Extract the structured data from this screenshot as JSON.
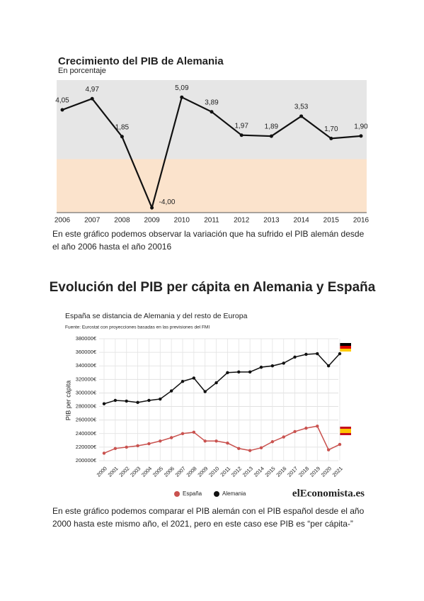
{
  "chart_data": [
    {
      "type": "line",
      "title": "Crecimiento del PIB de Alemania",
      "subtitle": "En porcentaje",
      "categories": [
        "2006",
        "2007",
        "2008",
        "2009",
        "2010",
        "2011",
        "2012",
        "2013",
        "2014",
        "2015",
        "2016"
      ],
      "values": [
        4.05,
        4.97,
        1.85,
        -4.0,
        5.09,
        3.89,
        1.97,
        1.89,
        3.53,
        1.7,
        1.9
      ],
      "value_labels": [
        "4,05",
        "4,97",
        "1,85",
        "-4,00",
        "5,09",
        "3,89",
        "1,97",
        "1,89",
        "3,53",
        "1,70",
        "1,90"
      ],
      "color": "#111111",
      "ylim": [
        -4.4,
        6.5
      ]
    },
    {
      "type": "line",
      "title": "Evolución del PIB per cápita en Alemania y España",
      "subtitle": "España se distancia de Alemania y del resto de Europa",
      "source": "Fuente: Eurostat con proyecciones basadas en las previsiones del FMI",
      "ylabel": "PIB per cápita",
      "brand": "elEconomista.es",
      "legend": "bottom",
      "grid": true,
      "categories": [
        "2000",
        "2001",
        "2002",
        "2003",
        "2004",
        "2005",
        "2006",
        "2007",
        "2008",
        "2009",
        "2010",
        "2011",
        "2012",
        "2013",
        "2014",
        "2015",
        "2016",
        "2017",
        "2018",
        "2019",
        "2020",
        "2021"
      ],
      "series": [
        {
          "name": "España",
          "color": "#c9524f",
          "values": [
            211000,
            218000,
            220000,
            222000,
            225000,
            229000,
            234000,
            240000,
            242000,
            229000,
            229000,
            226000,
            218000,
            215000,
            219000,
            228000,
            235000,
            243000,
            248000,
            251000,
            216000,
            224000
          ]
        },
        {
          "name": "Alemania",
          "color": "#111111",
          "values": [
            284000,
            289000,
            288000,
            286000,
            289000,
            291000,
            303000,
            317000,
            322000,
            302000,
            315000,
            330000,
            331000,
            331000,
            338000,
            340000,
            344000,
            353000,
            357000,
            358000,
            340000,
            358000
          ]
        }
      ],
      "ylim": [
        200000,
        380000
      ],
      "yticks": [
        {
          "value": 200000,
          "label": "200000€"
        },
        {
          "value": 220000,
          "label": "220000€"
        },
        {
          "value": 240000,
          "label": "240000€"
        },
        {
          "value": 260000,
          "label": "260000€"
        },
        {
          "value": 280000,
          "label": "280000€"
        },
        {
          "value": 300000,
          "label": "300000€"
        },
        {
          "value": 320000,
          "label": "320000€"
        },
        {
          "value": 340000,
          "label": "340000€"
        },
        {
          "value": 360000,
          "label": "360000€"
        },
        {
          "value": 380000,
          "label": "380000€"
        }
      ]
    }
  ],
  "paragraphs": [
    [
      "En este gráfico podemos observar la variación que ha sufrido el PIB alemán desde",
      "el año 2006 hasta el año 20016"
    ],
    [
      "En este gráfico podemos comparar el PIB alemán con el PIB español desde el año",
      "2000 hasta este mismo año, el 2021, pero en este caso ese PIB es “per cápita-”"
    ]
  ]
}
